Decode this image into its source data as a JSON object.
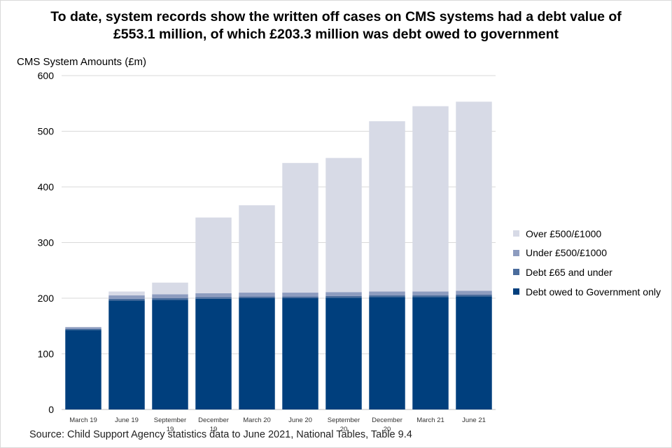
{
  "chart_data": {
    "type": "bar",
    "stacked": true,
    "title": "To date, system records show the written off cases on CMS systems had a debt value of £553.1 million, of which £203.3 million was debt owed to government",
    "ylabel": "CMS System Amounts (£m)",
    "xlabel": "",
    "ylim": [
      0,
      600
    ],
    "yticks": [
      0,
      100,
      200,
      300,
      400,
      500,
      600
    ],
    "grid": true,
    "legend_position": "right",
    "categories": [
      "March 19",
      "June 19",
      "September 19",
      "December 19",
      "March 20",
      "June 20",
      "September 20",
      "December 20",
      "March 21",
      "June 21"
    ],
    "series": [
      {
        "name": "Debt owed to Government only",
        "color": "#003f7d",
        "values": [
          143,
          196,
          197,
          199,
          200,
          200,
          201,
          202,
          202,
          203.3
        ]
      },
      {
        "name": "Debt £65 and under",
        "color": "#4a6c9c",
        "values": [
          2,
          3,
          3,
          3,
          3,
          3,
          3,
          3,
          3,
          3
        ]
      },
      {
        "name": "Under £500/£1000",
        "color": "#8d9cbf",
        "values": [
          3,
          6,
          7,
          7,
          7,
          7,
          7,
          7,
          7,
          7
        ]
      },
      {
        "name": "Over £500/£1000",
        "color": "#d7dae6",
        "values": [
          0,
          7,
          21,
          136,
          157,
          233,
          241,
          306,
          333,
          339.8
        ]
      }
    ]
  },
  "source": "Source: Child Support Agency statistics data to June 2021, National Tables, Table 9.4"
}
